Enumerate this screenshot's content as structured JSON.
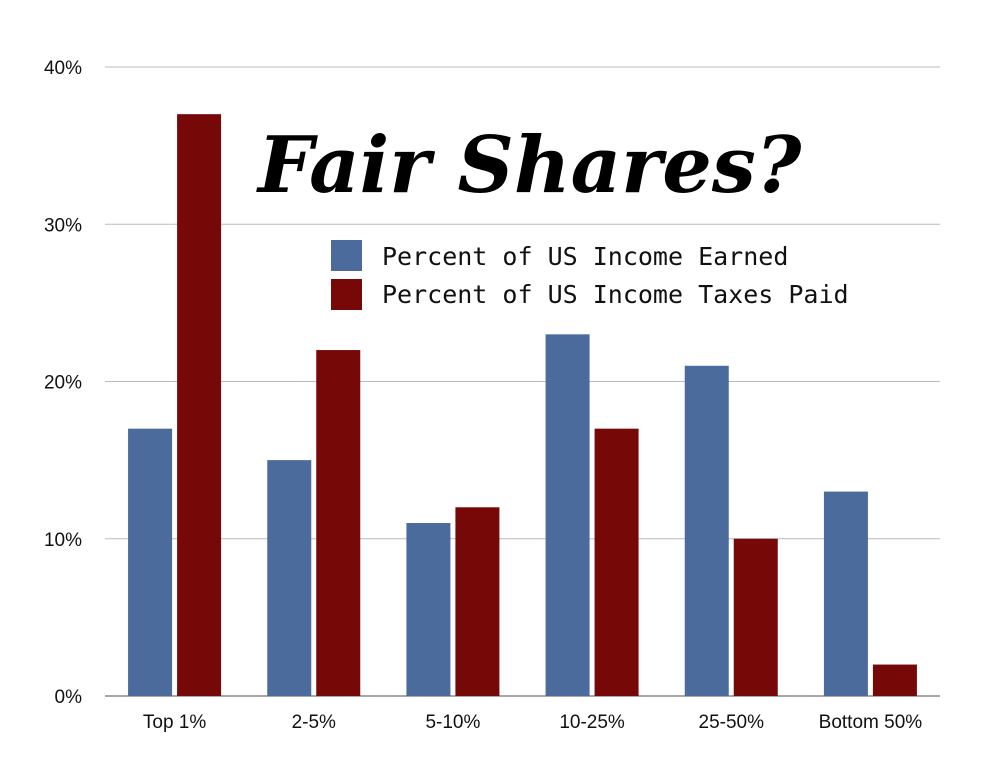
{
  "chart_data": {
    "type": "bar",
    "title": "Fair Shares?",
    "xlabel": "",
    "ylabel": "",
    "categories": [
      "Top 1%",
      "2-5%",
      "5-10%",
      "10-25%",
      "25-50%",
      "Bottom 50%"
    ],
    "series": [
      {
        "name": "Percent of US Income Earned",
        "color": "#4a6b9c",
        "values": [
          17,
          15,
          11,
          23,
          21,
          13
        ]
      },
      {
        "name": "Percent of US Income Taxes Paid",
        "color": "#770808",
        "values": [
          37,
          22,
          12,
          17,
          10,
          2
        ]
      }
    ],
    "ylim": [
      0,
      40
    ],
    "yticks": [
      0,
      10,
      20,
      30,
      40
    ],
    "ytick_labels": [
      "0%",
      "10%",
      "20%",
      "30%",
      "40%"
    ],
    "grid": true,
    "legend_position": "top-right"
  }
}
